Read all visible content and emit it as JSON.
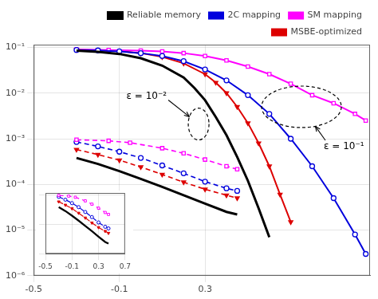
{
  "chart_data": [
    {
      "type": "line",
      "log": "y",
      "grid": true,
      "legend": "upper right",
      "xlim": [
        -0.5,
        1.07
      ],
      "ylim": [
        1e-06,
        0.115
      ],
      "xticks": [
        -0.5,
        -0.1,
        0.3
      ],
      "yticks": [
        {
          "value": 1e-06,
          "label": "10⁻⁶"
        },
        {
          "value": 1e-05,
          "label": "10⁻⁵"
        },
        {
          "value": 0.0001,
          "label": "10⁻⁴"
        },
        {
          "value": 0.001,
          "label": "10⁻³"
        },
        {
          "value": 0.01,
          "label": "10⁻²"
        },
        {
          "value": 0.1,
          "label": "10⁻¹"
        }
      ],
      "series": [
        {
          "name": "Reliable memory",
          "color": "#000000",
          "line_style": "solid",
          "x": [
            -0.3,
            -0.2,
            -0.1,
            0.0,
            0.1,
            0.2,
            0.25,
            0.3,
            0.35,
            0.4,
            0.45,
            0.5,
            0.55,
            0.6
          ],
          "values": [
            0.085,
            0.08,
            0.072,
            0.058,
            0.04,
            0.022,
            0.013,
            0.007,
            0.003,
            0.0012,
            0.0004,
            0.00012,
            3e-05,
            7e-06
          ]
        },
        {
          "name": "2C mapping",
          "color": "#0000dd",
          "line_style": "solid",
          "marker": "circle",
          "x": [
            -0.3,
            -0.2,
            -0.1,
            0.0,
            0.1,
            0.2,
            0.3,
            0.4,
            0.5,
            0.6,
            0.7,
            0.8,
            0.9,
            1.0,
            1.05
          ],
          "values": [
            0.088,
            0.086,
            0.082,
            0.075,
            0.065,
            0.05,
            0.033,
            0.019,
            0.009,
            0.0035,
            0.001,
            0.00025,
            5e-05,
            8e-06,
            3e-06
          ]
        },
        {
          "name": "SM mapping",
          "color": "#ff00ff",
          "line_style": "solid",
          "marker": "square",
          "x": [
            -0.3,
            -0.15,
            0.0,
            0.1,
            0.2,
            0.3,
            0.4,
            0.5,
            0.6,
            0.7,
            0.8,
            0.9,
            1.0,
            1.05
          ],
          "values": [
            0.09,
            0.088,
            0.085,
            0.082,
            0.075,
            0.065,
            0.052,
            0.038,
            0.026,
            0.016,
            0.009,
            0.006,
            0.0035,
            0.0025
          ]
        },
        {
          "name": "MSBE-optimized",
          "color": "#dd0000",
          "line_style": "solid",
          "marker": "triangle_down",
          "x": [
            -0.3,
            -0.2,
            -0.1,
            0.0,
            0.1,
            0.2,
            0.3,
            0.35,
            0.4,
            0.45,
            0.5,
            0.55,
            0.6,
            0.65,
            0.7
          ],
          "values": [
            0.089,
            0.087,
            0.083,
            0.075,
            0.062,
            0.045,
            0.026,
            0.017,
            0.01,
            0.005,
            0.0022,
            0.0008,
            0.00025,
            6e-05,
            1.5e-05
          ]
        },
        {
          "color": "#000000",
          "line_style": "solid",
          "x": [
            -0.3,
            -0.2,
            -0.1,
            0.0,
            0.1,
            0.2,
            0.3,
            0.4,
            0.45
          ],
          "values": [
            0.00038,
            0.00028,
            0.000195,
            0.000132,
            8.8e-05,
            5.8e-05,
            3.8e-05,
            2.5e-05,
            2.2e-05
          ]
        },
        {
          "color": "#ff00ff",
          "line_style": "dashed",
          "marker": "square",
          "x": [
            -0.3,
            -0.15,
            -0.05,
            0.1,
            0.2,
            0.3,
            0.4,
            0.45
          ],
          "values": [
            0.00095,
            0.0009,
            0.00082,
            0.00062,
            0.00048,
            0.00035,
            0.00025,
            0.000215
          ]
        },
        {
          "color": "#0000dd",
          "line_style": "dashed",
          "marker": "circle",
          "x": [
            -0.3,
            -0.2,
            -0.1,
            0.0,
            0.1,
            0.2,
            0.3,
            0.4,
            0.45
          ],
          "values": [
            0.00085,
            0.00068,
            0.00052,
            0.00038,
            0.00026,
            0.000175,
            0.000115,
            8.2e-05,
            7.2e-05
          ]
        },
        {
          "color": "#dd0000",
          "line_style": "dashed",
          "marker": "triangle_down",
          "x": [
            -0.3,
            -0.2,
            -0.1,
            0.0,
            0.1,
            0.2,
            0.3,
            0.4,
            0.45
          ],
          "values": [
            0.00058,
            0.00045,
            0.00034,
            0.00024,
            0.000165,
            0.000112,
            7.8e-05,
            5.8e-05,
            5e-05
          ]
        }
      ],
      "annotations": [
        {
          "text": "ε = 10⁻²",
          "x": 0.27,
          "y": 0.0021
        },
        {
          "text": "ε = 10⁻¹",
          "x": 0.75,
          "y": 0.005
        }
      ]
    },
    {
      "type": "line",
      "log": "y",
      "grid": true,
      "tick_labels": "x",
      "xlim": [
        -0.5,
        0.7
      ],
      "ylim": [
        1e-05,
        0.00115
      ],
      "xticks": [
        -0.5,
        -0.1,
        0.3,
        0.7
      ],
      "yticks": [
        1e-05,
        0.0001,
        0.001
      ],
      "series": [
        {
          "color": "#000000",
          "line_style": "solid",
          "x": [
            -0.3,
            -0.2,
            -0.1,
            0.0,
            0.1,
            0.2,
            0.3,
            0.4,
            0.45
          ],
          "values": [
            0.00038,
            0.00028,
            0.000195,
            0.000132,
            8.8e-05,
            5.8e-05,
            3.8e-05,
            2.5e-05,
            2.2e-05
          ]
        },
        {
          "color": "#ff00ff",
          "line_style": "dashed",
          "marker": "square",
          "x": [
            -0.3,
            -0.15,
            -0.05,
            0.1,
            0.2,
            0.3,
            0.4,
            0.45
          ],
          "values": [
            0.00095,
            0.0009,
            0.00082,
            0.00062,
            0.00048,
            0.00035,
            0.00025,
            0.000215
          ]
        },
        {
          "color": "#0000dd",
          "line_style": "dashed",
          "marker": "circle",
          "x": [
            -0.3,
            -0.2,
            -0.1,
            0.0,
            0.1,
            0.2,
            0.3,
            0.4,
            0.45
          ],
          "values": [
            0.00085,
            0.00068,
            0.00052,
            0.00038,
            0.00026,
            0.000175,
            0.000115,
            8.2e-05,
            7.2e-05
          ]
        },
        {
          "color": "#dd0000",
          "line_style": "dashed",
          "marker": "triangle_down",
          "x": [
            -0.3,
            -0.2,
            -0.1,
            0.0,
            0.1,
            0.2,
            0.3,
            0.4,
            0.45
          ],
          "values": [
            0.00058,
            0.00045,
            0.00034,
            0.00024,
            0.000165,
            0.000112,
            7.8e-05,
            5.8e-05,
            5e-05
          ]
        }
      ]
    }
  ]
}
